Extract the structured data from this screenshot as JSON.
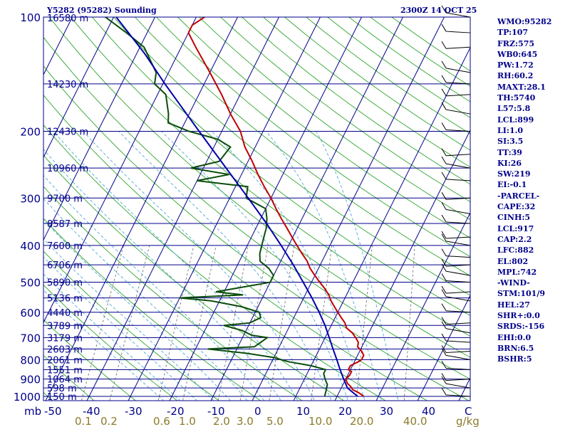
{
  "header": {
    "station_title": "Y5282 (95282) Sounding",
    "valid_time": "2300Z 14 OCT 25"
  },
  "indices": [
    "WMO:95282",
    "TP:107",
    "FRZ:575",
    "WB0:645",
    "PW:1.72",
    "RH:60.2",
    "MAXT:28.1",
    "TH:5740",
    "L57:5.8",
    "LCL:899",
    "LI:1.0",
    "SI:3.5",
    "TT:39",
    "KI:26",
    "SW:219",
    "EI:-0.1",
    "-PARCEL-",
    "CAPE:32",
    "CINH:5",
    "LCL:917",
    "CAP:2.2",
    "LFC:882",
    "EL:802",
    "MPL:742",
    "-WIND-",
    "STM:101/9",
    "HEL:27",
    "SHR+:0.0",
    "SRDS:-156",
    "EHI:0.0",
    "BRN:6.5",
    "BSHR:5"
  ],
  "colors": {
    "isobar": "#00008b",
    "isotherm": "#00008b",
    "dry_adiabat": "#2fa52f",
    "moist_adiabat": "#4fa9d8",
    "mixing_ratio": "#666666",
    "temperature": "#c00000",
    "dewpoint": "#0b4d0b",
    "parcel": "#0000aa",
    "text": "#00008b",
    "mixing_label": "#8b7b2a"
  },
  "chart_data": {
    "type": "skew-t log-p sounding",
    "title": "Y5282 (95282) Sounding",
    "xlabel": "C",
    "ylabel": "mb",
    "ylim": [
      1000,
      100
    ],
    "xlim": [
      -50,
      50
    ],
    "temperature_ticks": [
      -50,
      -40,
      -30,
      -20,
      -10,
      0,
      10,
      20,
      30,
      40
    ],
    "temperature_tick_labels": [
      "-50",
      "-40",
      "-30",
      "-20",
      "-10",
      "0",
      "10",
      "20",
      "30",
      "40"
    ],
    "temperature_unit_label": "C",
    "pressure_levels": [
      {
        "p": 100,
        "label": "100",
        "height": "16580 m"
      },
      {
        "p": 150,
        "label": "",
        "height": "14230 m"
      },
      {
        "p": 200,
        "label": "200",
        "height": "12430 m"
      },
      {
        "p": 250,
        "label": "",
        "height": "10960 m"
      },
      {
        "p": 300,
        "label": "300",
        "height": "9700 m"
      },
      {
        "p": 350,
        "label": "",
        "height": "8587 m"
      },
      {
        "p": 400,
        "label": "400",
        "height": "7600 m"
      },
      {
        "p": 450,
        "label": "",
        "height": "6706 m"
      },
      {
        "p": 500,
        "label": "500",
        "height": "5890 m"
      },
      {
        "p": 550,
        "label": "",
        "height": "5136 m"
      },
      {
        "p": 600,
        "label": "600",
        "height": "4440 m"
      },
      {
        "p": 650,
        "label": "",
        "height": "3789 m"
      },
      {
        "p": 700,
        "label": "700",
        "height": "3179 m"
      },
      {
        "p": 750,
        "label": "",
        "height": "2603 m"
      },
      {
        "p": 800,
        "label": "800",
        "height": "2061 m"
      },
      {
        "p": 850,
        "label": "",
        "height": "1551 m"
      },
      {
        "p": 900,
        "label": "900",
        "height": "1064 m"
      },
      {
        "p": 950,
        "label": "",
        "height": "598 m"
      },
      {
        "p": 1000,
        "label": "1000",
        "height": "150 m"
      }
    ],
    "mixing_ratio_labels": [
      "0.1",
      "0.2",
      "0.6",
      "1.0",
      "2.0",
      "3.0",
      "5.0",
      "10.0",
      "20.0",
      "40.0"
    ],
    "mixing_ratio_values": [
      0.1,
      0.2,
      0.6,
      1.0,
      2.0,
      3.0,
      5.0,
      10.0,
      20.0,
      40.0
    ],
    "mixing_ratio_unit": "g/kg",
    "series": [
      {
        "name": "temperature",
        "points": [
          [
            1000,
            26.5
          ],
          [
            980,
            25
          ],
          [
            960,
            23
          ],
          [
            940,
            22
          ],
          [
            925,
            21
          ],
          [
            900,
            20
          ],
          [
            880,
            20.5
          ],
          [
            860,
            20.5
          ],
          [
            850,
            19.5
          ],
          [
            830,
            19.5
          ],
          [
            810,
            21
          ],
          [
            800,
            21.5
          ],
          [
            780,
            21.5
          ],
          [
            760,
            20.5
          ],
          [
            740,
            19
          ],
          [
            720,
            18.6
          ],
          [
            700,
            17.4
          ],
          [
            680,
            16
          ],
          [
            660,
            14
          ],
          [
            640,
            13
          ],
          [
            620,
            11.5
          ],
          [
            600,
            10
          ],
          [
            580,
            8.5
          ],
          [
            560,
            7
          ],
          [
            540,
            5.7
          ],
          [
            520,
            4
          ],
          [
            500,
            2
          ],
          [
            480,
            0
          ],
          [
            460,
            -2
          ],
          [
            440,
            -3.6
          ],
          [
            420,
            -5.8
          ],
          [
            400,
            -8
          ],
          [
            380,
            -10.2
          ],
          [
            360,
            -12.5
          ],
          [
            340,
            -15
          ],
          [
            320,
            -17.5
          ],
          [
            300,
            -20
          ],
          [
            280,
            -23
          ],
          [
            260,
            -26
          ],
          [
            240,
            -29
          ],
          [
            220,
            -32.5
          ],
          [
            200,
            -35.5
          ],
          [
            180,
            -40
          ],
          [
            160,
            -44.5
          ],
          [
            140,
            -50
          ],
          [
            120,
            -56.5
          ],
          [
            110,
            -60
          ],
          [
            105,
            -60
          ],
          [
            100,
            -58
          ]
        ]
      },
      {
        "name": "dewpoint",
        "points": [
          [
            1000,
            17
          ],
          [
            980,
            16.8
          ],
          [
            960,
            16.6
          ],
          [
            930,
            16.2
          ],
          [
            900,
            15
          ],
          [
            870,
            14
          ],
          [
            850,
            14
          ],
          [
            830,
            10
          ],
          [
            810,
            4
          ],
          [
            790,
            0
          ],
          [
            770,
            -7
          ],
          [
            750,
            -17
          ],
          [
            740,
            -6
          ],
          [
            720,
            -5
          ],
          [
            700,
            -4
          ],
          [
            690,
            -8
          ],
          [
            670,
            -11
          ],
          [
            650,
            -16
          ],
          [
            640,
            -10
          ],
          [
            620,
            -8
          ],
          [
            600,
            -9
          ],
          [
            580,
            -14
          ],
          [
            560,
            -22
          ],
          [
            550,
            -30
          ],
          [
            540,
            -15
          ],
          [
            530,
            -22
          ],
          [
            520,
            -18
          ],
          [
            500,
            -10
          ],
          [
            480,
            -10
          ],
          [
            460,
            -12
          ],
          [
            440,
            -15
          ],
          [
            420,
            -16
          ],
          [
            400,
            -16.5
          ],
          [
            380,
            -17
          ],
          [
            360,
            -17.5
          ],
          [
            340,
            -18.5
          ],
          [
            320,
            -20
          ],
          [
            300,
            -26
          ],
          [
            280,
            -27
          ],
          [
            270,
            -40
          ],
          [
            260,
            -33
          ],
          [
            250,
            -43
          ],
          [
            240,
            -37
          ],
          [
            220,
            -36
          ],
          [
            210,
            -40
          ],
          [
            200,
            -48
          ],
          [
            190,
            -54
          ],
          [
            180,
            -55
          ],
          [
            160,
            -58
          ],
          [
            150,
            -62
          ],
          [
            140,
            -63
          ],
          [
            120,
            -69
          ],
          [
            110,
            -75
          ],
          [
            100,
            -82
          ],
          [
            95,
            -85
          ]
        ]
      },
      {
        "name": "parcel",
        "points": [
          [
            1000,
            25
          ],
          [
            950,
            21.5
          ],
          [
            900,
            19.5
          ],
          [
            850,
            17.5
          ],
          [
            800,
            15.5
          ],
          [
            750,
            13.3
          ],
          [
            700,
            11
          ],
          [
            650,
            8.5
          ],
          [
            600,
            5.5
          ],
          [
            550,
            2
          ],
          [
            500,
            -2
          ],
          [
            450,
            -6.5
          ],
          [
            400,
            -11.8
          ],
          [
            350,
            -18
          ],
          [
            300,
            -25.5
          ],
          [
            250,
            -34.5
          ],
          [
            200,
            -45.5
          ],
          [
            175,
            -52
          ],
          [
            150,
            -59.5
          ],
          [
            125,
            -68
          ],
          [
            110,
            -74.5
          ],
          [
            95,
            -82
          ]
        ]
      }
    ],
    "wind_barbs_note": "wind barbs drawn along right edge"
  }
}
